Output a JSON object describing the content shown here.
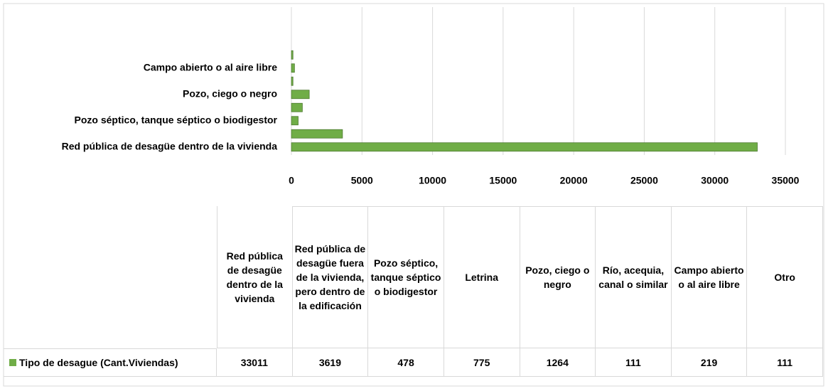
{
  "chart_data": {
    "type": "bar",
    "orientation": "horizontal",
    "categories": [
      "Red pública de desagüe dentro de la vivienda",
      "Red pública de desagüe fuera de la vivienda, pero dentro de la edificación",
      "Pozo séptico, tanque séptico o biodigestor",
      "Letrina",
      "Pozo, ciego o negro",
      "Río, acequia, canal o similar",
      "Campo abierto  o al aire libre",
      "Otro"
    ],
    "series": [
      {
        "name": "Tipo de desague (Cant.Viviendas)",
        "color": "#70ad47",
        "values": [
          33011,
          3619,
          478,
          775,
          1264,
          111,
          219,
          111
        ]
      }
    ],
    "xlim": [
      0,
      35000
    ],
    "xticks": [
      0,
      5000,
      10000,
      15000,
      20000,
      25000,
      30000,
      35000
    ],
    "grid": true
  }
}
